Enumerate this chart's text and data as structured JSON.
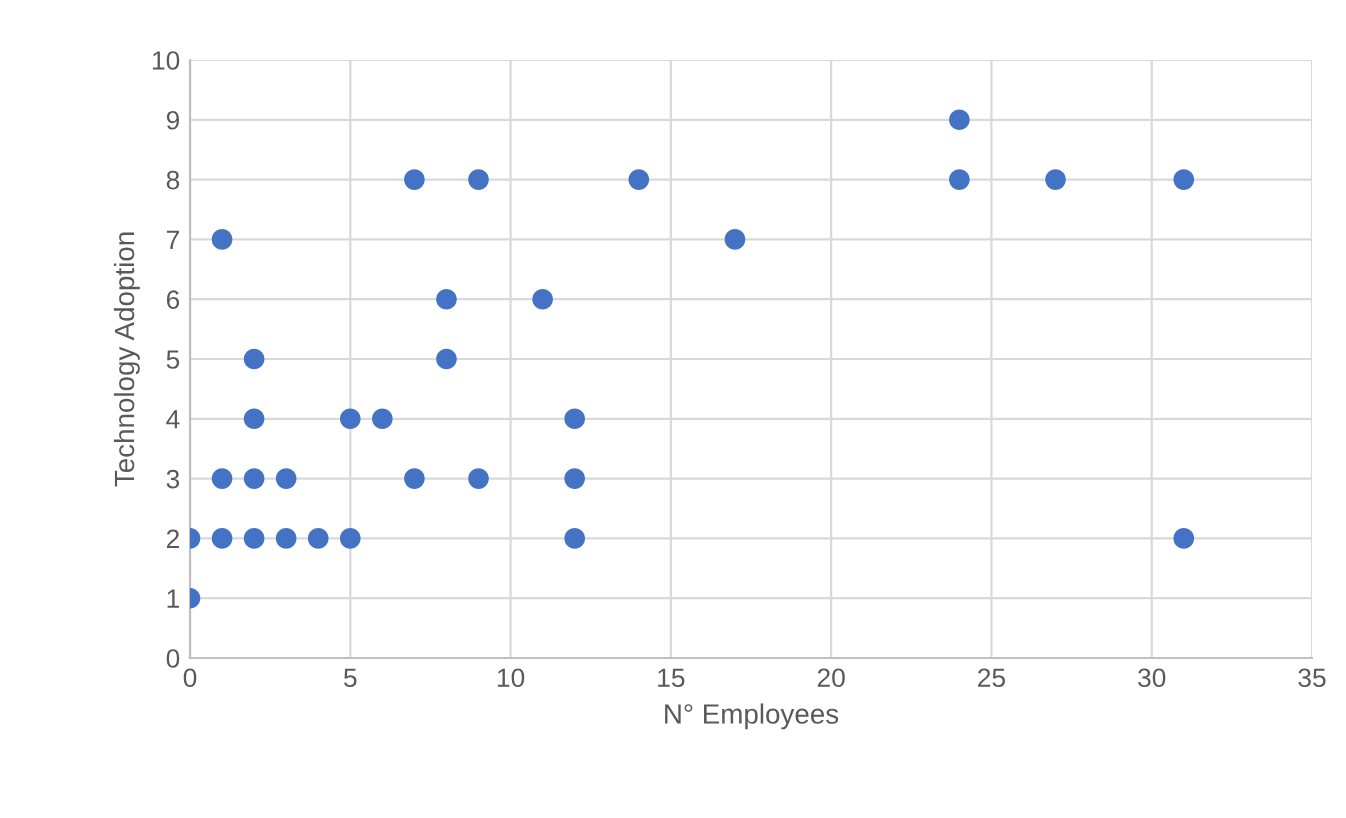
{
  "chart_data": {
    "type": "scatter",
    "xlabel": "N° Employees",
    "ylabel": "Technology Adoption",
    "x": [
      0,
      0,
      1,
      1,
      1,
      2,
      2,
      2,
      2,
      3,
      3,
      4,
      5,
      5,
      6,
      7,
      7,
      8,
      8,
      9,
      9,
      11,
      12,
      12,
      12,
      14,
      17,
      24,
      24,
      27,
      31,
      31
    ],
    "values": [
      1,
      2,
      2,
      3,
      7,
      2,
      3,
      4,
      5,
      2,
      3,
      2,
      2,
      4,
      4,
      3,
      8,
      5,
      6,
      3,
      8,
      6,
      2,
      3,
      4,
      8,
      7,
      8,
      9,
      8,
      8,
      2
    ],
    "color": "#4472c4",
    "marker": "circle",
    "xlim": [
      0,
      35
    ],
    "xticks": [
      0,
      5,
      10,
      15,
      20,
      25,
      30,
      35
    ],
    "ylim": [
      0,
      10
    ],
    "yticks": [
      0,
      1,
      2,
      3,
      4,
      5,
      6,
      7,
      8,
      9,
      10
    ],
    "grid": true
  }
}
